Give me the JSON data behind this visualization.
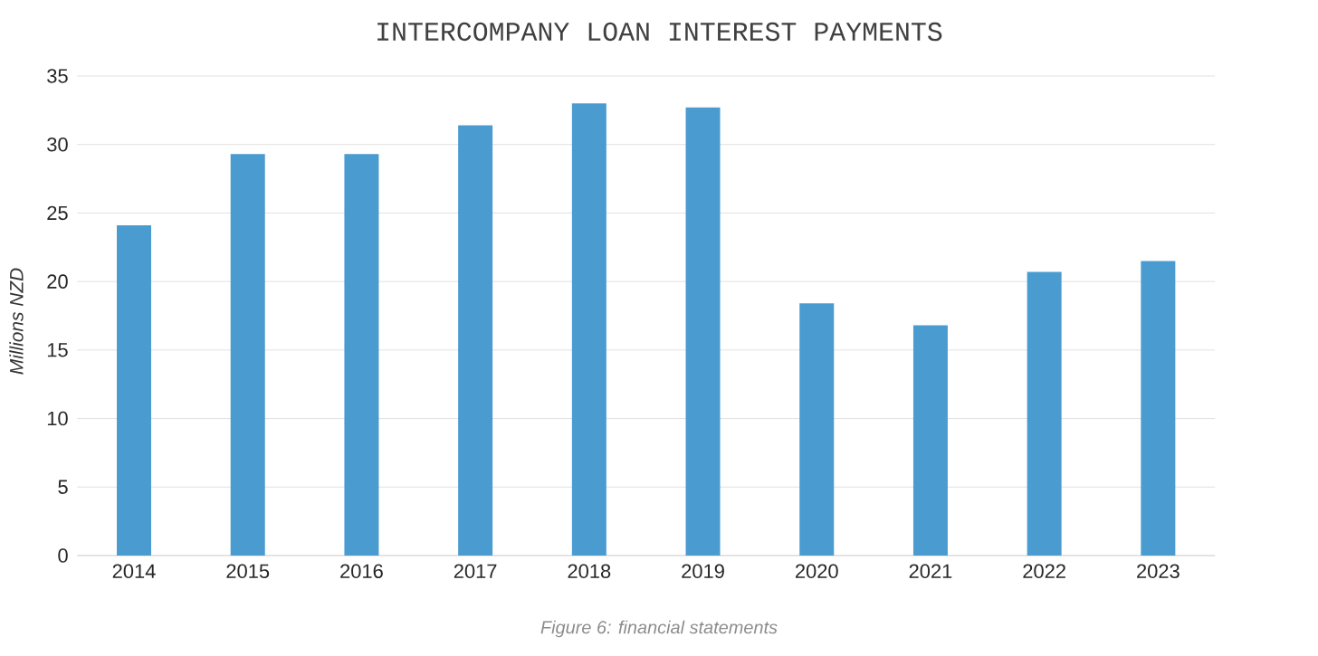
{
  "chart_data": {
    "type": "bar",
    "title": "INTERCOMPANY LOAN INTEREST PAYMENTS",
    "ylabel": "Millions NZD",
    "annotations": [
      "Figure 6: financial statements"
    ],
    "categories": [
      "2014",
      "2015",
      "2016",
      "2017",
      "2018",
      "2019",
      "2020",
      "2021",
      "2022",
      "2023"
    ],
    "values": [
      24.1,
      29.3,
      29.3,
      31.4,
      33.0,
      32.7,
      18.4,
      16.8,
      20.7,
      21.5
    ],
    "color": "#4a9bd0",
    "ylim": [
      0,
      35
    ],
    "yticks": [
      0,
      5,
      10,
      15,
      20,
      25,
      30,
      35
    ],
    "grid": "y"
  }
}
